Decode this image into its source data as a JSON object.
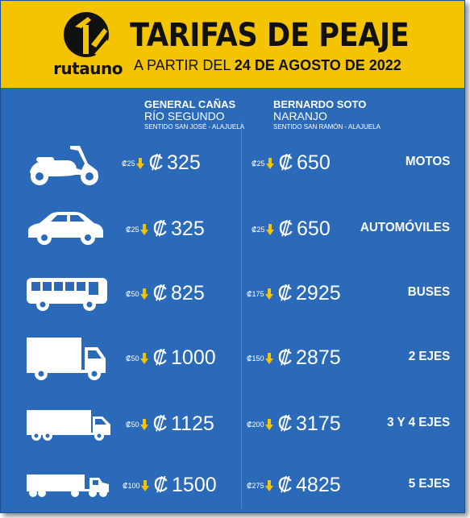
{
  "header": {
    "brand": "rutauno",
    "title": "TARIFAS DE PEAJE",
    "subtitle_prefix": "A PARTIR DEL",
    "subtitle_date": "24 DE AGOSTO DE 2022",
    "bg_color": "#f5c400"
  },
  "columns": [
    {
      "name": "GENERAL CAÑAS",
      "name2": "RÍO SEGUNDO",
      "direction": "SENTIDO SAN JOSÉ - ALAJUELA"
    },
    {
      "name": "BERNARDO SOTO",
      "name2": "NARANJO",
      "direction": "SENTIDO SAN RAMÓN - ALAJUELA"
    }
  ],
  "currency": "₡",
  "rows": [
    {
      "vehicle_icon": "scooter-icon",
      "category": "MOTOS",
      "col1": {
        "discount": "₡25",
        "price": "325"
      },
      "col2": {
        "discount": "₡25",
        "price": "650"
      }
    },
    {
      "vehicle_icon": "car-icon",
      "category": "AUTOMÓVILES",
      "col1": {
        "discount": "₡25",
        "price": "325"
      },
      "col2": {
        "discount": "₡25",
        "price": "650"
      }
    },
    {
      "vehicle_icon": "bus-icon",
      "category": "BUSES",
      "col1": {
        "discount": "₡50",
        "price": "825"
      },
      "col2": {
        "discount": "₡175",
        "price": "2925"
      }
    },
    {
      "vehicle_icon": "truck-icon",
      "category": "2 EJES",
      "col1": {
        "discount": "₡50",
        "price": "1000"
      },
      "col2": {
        "discount": "₡150",
        "price": "2875"
      }
    },
    {
      "vehicle_icon": "box-truck-icon",
      "category": "3 Y 4 EJES",
      "col1": {
        "discount": "₡50",
        "price": "1125"
      },
      "col2": {
        "discount": "₡200",
        "price": "3175"
      }
    },
    {
      "vehicle_icon": "semi-truck-icon",
      "category": "5 EJES",
      "col1": {
        "discount": "₡100",
        "price": "1500"
      },
      "col2": {
        "discount": "₡275",
        "price": "4825"
      }
    }
  ],
  "colors": {
    "background": "#2a6ab8",
    "arrow": "#f5c400",
    "text": "#ffffff"
  }
}
